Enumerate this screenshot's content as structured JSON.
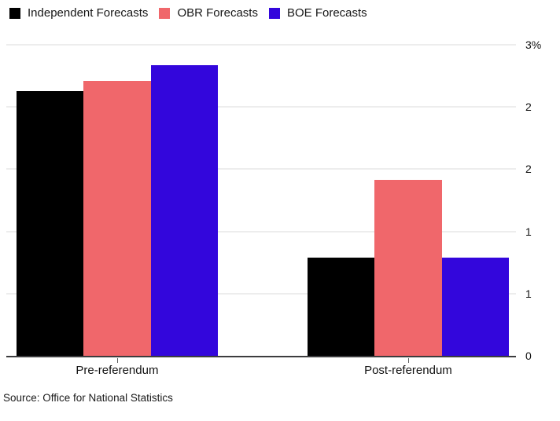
{
  "chart_data": {
    "type": "bar",
    "categories": [
      "Pre-referendum",
      "Post-referendum"
    ],
    "series": [
      {
        "name": "Independent Forecasts",
        "color": "#000000",
        "values": [
          2.55,
          0.95
        ]
      },
      {
        "name": "OBR Forecasts",
        "color": "#F0676B",
        "values": [
          2.65,
          1.7
        ]
      },
      {
        "name": "BOE Forecasts",
        "color": "#3306DC",
        "values": [
          2.8,
          0.95
        ]
      }
    ],
    "ylim": [
      0,
      3
    ],
    "y_ticks": [
      {
        "value": 3.0,
        "label": "3%"
      },
      {
        "value": 2.4,
        "label": "2"
      },
      {
        "value": 1.8,
        "label": "2"
      },
      {
        "value": 1.2,
        "label": "1"
      },
      {
        "value": 0.6,
        "label": "1"
      },
      {
        "value": 0.0,
        "label": "0"
      }
    ],
    "title": "",
    "xlabel": "",
    "ylabel": "",
    "grid": true,
    "legend_position": "top-left",
    "colors": {
      "baseline": "#3c3c3e",
      "gridline": "#ededed",
      "background": "#ffffff"
    }
  },
  "source_line": {
    "text": "Source: Office for National Statistics"
  }
}
